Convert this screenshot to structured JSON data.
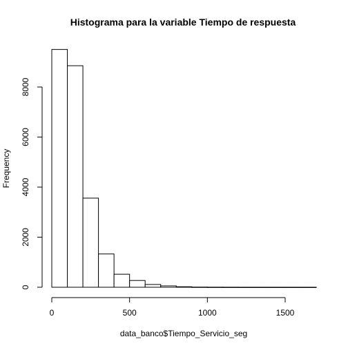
{
  "chart_data": {
    "type": "bar",
    "title": "Histograma para la variable Tiempo de respuesta",
    "xlabel": "data_banco$Tiempo_Servicio_seg",
    "ylabel": "Frequency",
    "bin_width": 100,
    "bins": [
      {
        "start": 0,
        "end": 100,
        "count": 9500
      },
      {
        "start": 100,
        "end": 200,
        "count": 8850
      },
      {
        "start": 200,
        "end": 300,
        "count": 3560
      },
      {
        "start": 300,
        "end": 400,
        "count": 1330
      },
      {
        "start": 400,
        "end": 500,
        "count": 520
      },
      {
        "start": 500,
        "end": 600,
        "count": 270
      },
      {
        "start": 600,
        "end": 700,
        "count": 110
      },
      {
        "start": 700,
        "end": 800,
        "count": 55
      },
      {
        "start": 800,
        "end": 900,
        "count": 20
      },
      {
        "start": 900,
        "end": 1000,
        "count": 6
      },
      {
        "start": 1000,
        "end": 1100,
        "count": 3
      },
      {
        "start": 1100,
        "end": 1200,
        "count": 2
      },
      {
        "start": 1200,
        "end": 1300,
        "count": 1
      },
      {
        "start": 1300,
        "end": 1400,
        "count": 1
      },
      {
        "start": 1400,
        "end": 1500,
        "count": 1
      },
      {
        "start": 1500,
        "end": 1600,
        "count": 1
      },
      {
        "start": 1600,
        "end": 1700,
        "count": 1
      }
    ],
    "xlim": [
      0,
      1700
    ],
    "ylim": [
      0,
      9500
    ],
    "xticks": [
      0,
      500,
      1000,
      1500
    ],
    "yticks": [
      0,
      2000,
      4000,
      6000,
      8000
    ],
    "grid": false,
    "legend": "none"
  }
}
